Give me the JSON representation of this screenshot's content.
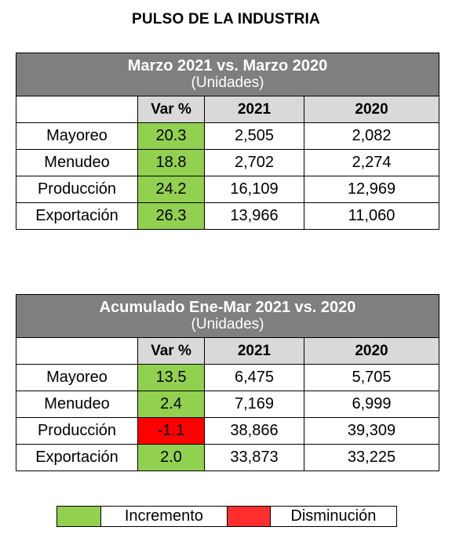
{
  "title": "PULSO DE LA INDUSTRIA",
  "tables": [
    {
      "title": "Marzo 2021 vs. Marzo 2020",
      "subtitle": "(Unidades)",
      "columns": [
        "",
        "Var %",
        "2021",
        "2020"
      ],
      "rows": [
        {
          "label": "Mayoreo",
          "var": "20.3",
          "y2021": "2,505",
          "y2020": "2,082"
        },
        {
          "label": "Menudeo",
          "var": "18.8",
          "y2021": "2,702",
          "y2020": "2,274"
        },
        {
          "label": "Producción",
          "var": "24.2",
          "y2021": "16,109",
          "y2020": "12,969"
        },
        {
          "label": "Exportación",
          "var": "26.3",
          "y2021": "13,966",
          "y2020": "11,060"
        }
      ]
    },
    {
      "title": "Acumulado Ene-Mar 2021 vs. 2020",
      "subtitle": "(Unidades)",
      "columns": [
        "",
        "Var %",
        "2021",
        "2020"
      ],
      "rows": [
        {
          "label": "Mayoreo",
          "var": "13.5",
          "y2021": "6,475",
          "y2020": "5,705"
        },
        {
          "label": "Menudeo",
          "var": "2.4",
          "y2021": "7,169",
          "y2020": "6,999"
        },
        {
          "label": "Producción",
          "var": "-1.1",
          "y2021": "38,866",
          "y2020": "39,309"
        },
        {
          "label": "Exportación",
          "var": "2.0",
          "y2021": "33,873",
          "y2020": "33,225"
        }
      ]
    }
  ],
  "legend": {
    "increase": "Incremento",
    "decrease": "Disminución"
  },
  "colors": {
    "increase": "#92d050",
    "decrease": "#ff0000",
    "header": "#7f7f7f",
    "column_header": "#d9d9d9"
  }
}
